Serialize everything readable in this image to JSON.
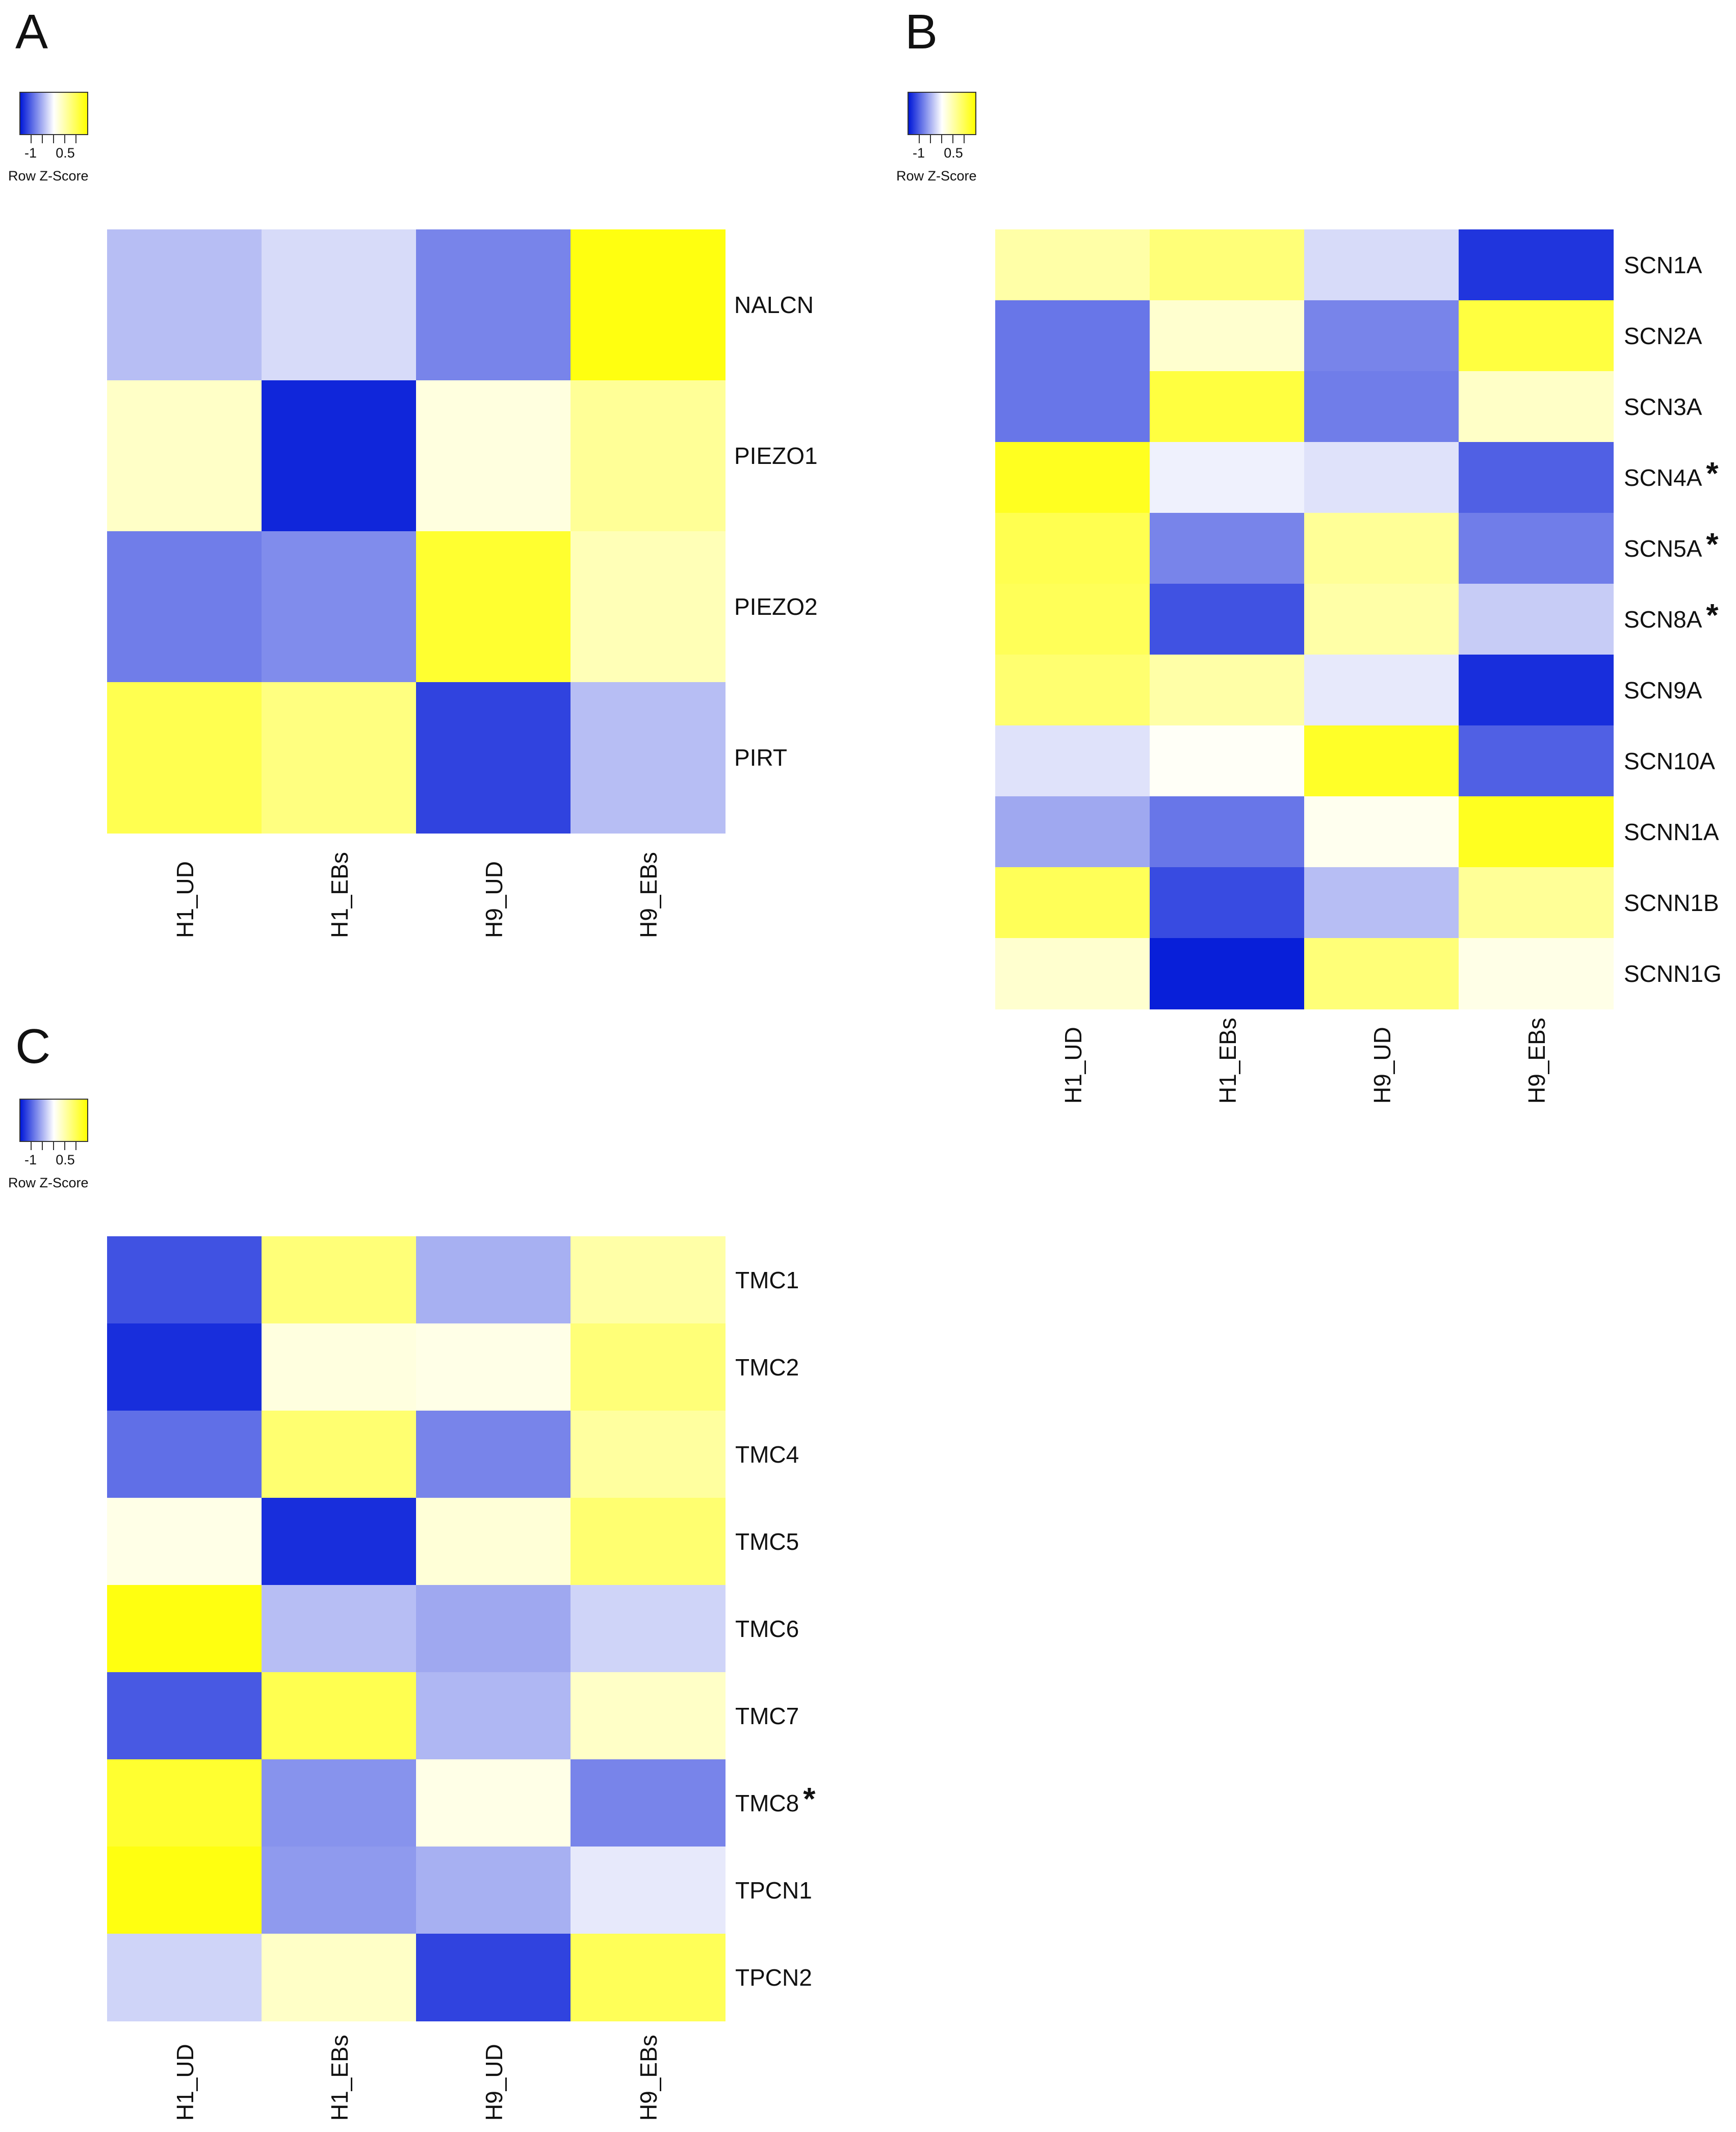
{
  "color_scale": {
    "low": "#0018d8",
    "mid": "#ffffff",
    "high": "#ffff00"
  },
  "chart_data": [
    {
      "panel": "A",
      "type": "heatmap",
      "legend": {
        "title": "Row Z-Score",
        "tick_labels": [
          "-1",
          "0.5"
        ]
      },
      "columns": [
        "H1_UD",
        "H1_EBs",
        "H9_UD",
        "H9_EBs"
      ],
      "rows": [
        "NALCN",
        "PIEZO1",
        "PIEZO2",
        "PIRT"
      ],
      "starred": [],
      "values": [
        [
          -0.45,
          -0.25,
          -0.85,
          1.5
        ],
        [
          0.35,
          -1.5,
          0.2,
          0.65
        ],
        [
          -0.9,
          -0.8,
          1.3,
          0.45
        ],
        [
          1.1,
          0.8,
          -1.3,
          -0.45
        ]
      ]
    },
    {
      "panel": "B",
      "type": "heatmap",
      "legend": {
        "title": "Row Z-Score",
        "tick_labels": [
          "-1",
          "0.5"
        ]
      },
      "columns": [
        "H1_UD",
        "H1_EBs",
        "H9_UD",
        "H9_EBs"
      ],
      "rows": [
        "SCN1A",
        "SCN2A",
        "SCN3A",
        "SCN4A",
        "SCN5A",
        "SCN8A",
        "SCN9A",
        "SCN10A",
        "SCNN1A",
        "SCNN1B",
        "SCNN1G"
      ],
      "starred": [
        "SCN4A",
        "SCN5A",
        "SCN8A"
      ],
      "values": [
        [
          0.55,
          0.85,
          -0.25,
          -1.4
        ],
        [
          -0.95,
          0.3,
          -0.85,
          1.2
        ],
        [
          -0.95,
          1.2,
          -0.9,
          0.35
        ],
        [
          1.4,
          -0.1,
          -0.2,
          -1.1
        ],
        [
          1.1,
          -0.85,
          0.65,
          -0.9
        ],
        [
          1.05,
          -1.2,
          0.55,
          -0.35
        ],
        [
          0.9,
          0.55,
          -0.15,
          -1.45
        ],
        [
          -0.2,
          0.05,
          1.35,
          -1.1
        ],
        [
          -0.6,
          -0.95,
          0.1,
          1.4
        ],
        [
          1.05,
          -1.25,
          -0.45,
          0.65
        ],
        [
          0.3,
          -1.55,
          0.85,
          0.15
        ]
      ]
    },
    {
      "panel": "C",
      "type": "heatmap",
      "legend": {
        "title": "Row Z-Score",
        "tick_labels": [
          "-1",
          "0.5"
        ]
      },
      "columns": [
        "H1_UD",
        "H1_EBs",
        "H9_UD",
        "H9_EBs"
      ],
      "rows": [
        "TMC1",
        "TMC2",
        "TMC4",
        "TMC5",
        "TMC6",
        "TMC7",
        "TMC8",
        "TPCN1",
        "TPCN2"
      ],
      "starred": [
        "TMC8"
      ],
      "values": [
        [
          -1.2,
          0.85,
          -0.55,
          0.55
        ],
        [
          -1.45,
          0.2,
          0.15,
          0.85
        ],
        [
          -1.0,
          0.9,
          -0.85,
          0.6
        ],
        [
          0.15,
          -1.45,
          0.25,
          0.9
        ],
        [
          1.5,
          -0.45,
          -0.6,
          -0.3
        ],
        [
          -1.15,
          1.1,
          -0.5,
          0.35
        ],
        [
          1.3,
          -0.75,
          0.15,
          -0.85
        ],
        [
          1.5,
          -0.7,
          -0.55,
          -0.15
        ],
        [
          -0.3,
          0.35,
          -1.3,
          1.05
        ]
      ]
    }
  ]
}
